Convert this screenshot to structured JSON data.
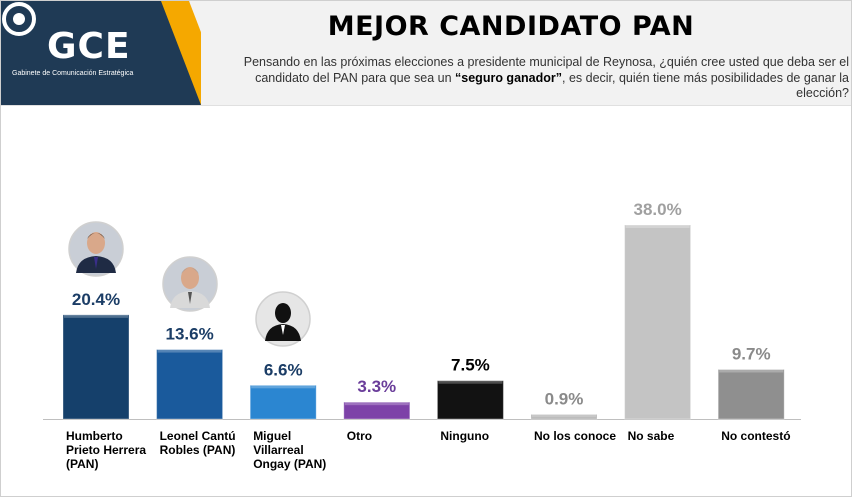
{
  "header": {
    "logo_text": "GCE",
    "logo_subtitle": "Gabinete de Comunicación Estratégica",
    "title": "MEJOR CANDIDATO PAN",
    "question_part1": "Pensando en las próximas elecciones a presidente municipal de Reynosa, ¿quién cree usted que deba ser el candidato del PAN para que sea un ",
    "question_emphasis": "“seguro ganador”",
    "question_part2": ", es decir, quién tiene más posibilidades de ganar la elección?"
  },
  "colors": {
    "header_bg": "#f2f2f2",
    "logo_navy": "#1f3a55",
    "accent_gold": "#f5a800"
  },
  "chart_data": {
    "type": "bar",
    "categories": [
      "Humberto Prieto Herrera (PAN)",
      "Leonel Cantú Robles (PAN)",
      "Miguel Villarreal Ongay (PAN)",
      "Otro",
      "Ninguno",
      "No los conoce",
      "No sabe",
      "No contestó"
    ],
    "category_lines": [
      [
        "Humberto",
        "Prieto Herrera",
        "(PAN)"
      ],
      [
        "Leonel Cantú",
        "Robles (PAN)"
      ],
      [
        "Miguel",
        "Villarreal",
        "Ongay (PAN)"
      ],
      [
        "Otro"
      ],
      [
        "Ninguno"
      ],
      [
        "No los conoce"
      ],
      [
        "No sabe"
      ],
      [
        "No contestó"
      ]
    ],
    "values": [
      20.4,
      13.6,
      6.6,
      3.3,
      7.5,
      0.9,
      38.0,
      9.7
    ],
    "value_labels": [
      "20.4%",
      "13.6%",
      "6.6%",
      "3.3%",
      "7.5%",
      "0.9%",
      "38.0%",
      "9.7%"
    ],
    "bar_colors": [
      "#15406b",
      "#1a5a9c",
      "#2b86d1",
      "#7d42a8",
      "#121212",
      "#b4b4b4",
      "#c4c4c4",
      "#8f8f8f"
    ],
    "label_colors": [
      "#1b3d66",
      "#1b3d66",
      "#1b3d66",
      "#6a3d9a",
      "#000000",
      "#8a8a8a",
      "#a0a0a0",
      "#8a8a8a"
    ],
    "photos": [
      {
        "category_index": 0,
        "name": "candidate-photo-humberto"
      },
      {
        "category_index": 1,
        "name": "candidate-photo-leonel"
      },
      {
        "category_index": 2,
        "name": "candidate-photo-miguel-silhouette"
      }
    ],
    "ylim": [
      0,
      40
    ],
    "grid": false,
    "legend": "none"
  }
}
